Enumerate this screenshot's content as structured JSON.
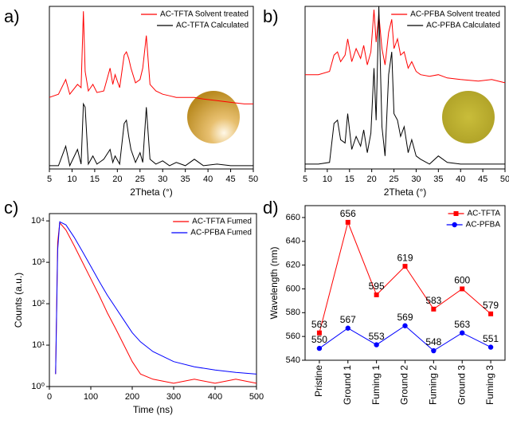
{
  "chart_data": [
    {
      "type": "line",
      "panel_label": "a)",
      "xlabel": "2Theta (°)",
      "legend": "upper right",
      "x": [
        5,
        7,
        8.6,
        9.5,
        11.2,
        12,
        12.5,
        12.9,
        13.6,
        14.6,
        15.5,
        17,
        18.4,
        19,
        19.5,
        20.5,
        21.5,
        22,
        22.5,
        23,
        24,
        25,
        25.6,
        26.4,
        27.2,
        28.5,
        30,
        31.5,
        33,
        35,
        37,
        39,
        42,
        45,
        48,
        50
      ],
      "series": [
        {
          "name": "AC-TFTA Solvent treated",
          "color": "#ff0000",
          "values": [
            44,
            46,
            55,
            46,
            52,
            50,
            97,
            60,
            48,
            52,
            47,
            48,
            62,
            52,
            58,
            50,
            70,
            72,
            68,
            62,
            53,
            55,
            62,
            82,
            52,
            48,
            46,
            45,
            44,
            44,
            44,
            43,
            42,
            41,
            40,
            40
          ]
        },
        {
          "name": "AC-TFTA Calculated",
          "color": "#000000",
          "values": [
            2,
            2,
            14,
            2,
            12,
            3,
            40,
            38,
            3,
            8,
            3,
            6,
            12,
            4,
            8,
            3,
            28,
            30,
            20,
            12,
            4,
            10,
            4,
            38,
            6,
            3,
            5,
            2,
            4,
            2,
            6,
            2,
            3,
            2,
            2,
            2
          ]
        }
      ],
      "xlim": [
        5,
        50
      ],
      "xticks": [
        5,
        10,
        15,
        20,
        25,
        30,
        35,
        40,
        45,
        50
      ],
      "ylim": [
        0,
        100
      ]
    },
    {
      "type": "line",
      "panel_label": "b)",
      "xlabel": "2Theta (°)",
      "legend": "upper right",
      "x": [
        5,
        8,
        10.5,
        11.5,
        12.3,
        13,
        14,
        14.6,
        15.5,
        16.5,
        17.5,
        18.2,
        19,
        19.8,
        20.5,
        21,
        21.6,
        22.3,
        23,
        23.8,
        24.5,
        25,
        25.8,
        26.5,
        27.3,
        28.2,
        29,
        30,
        31,
        33,
        35,
        37,
        40,
        44,
        47,
        50
      ],
      "series": [
        {
          "name": "AC-PFBA Solvent treated",
          "color": "#ff0000",
          "values": [
            58,
            58,
            60,
            70,
            72,
            66,
            70,
            80,
            66,
            74,
            68,
            76,
            64,
            72,
            98,
            78,
            95,
            74,
            64,
            84,
            92,
            74,
            80,
            70,
            72,
            62,
            66,
            60,
            58,
            57,
            58,
            56,
            55,
            54,
            55,
            53
          ]
        },
        {
          "name": "AC-PFBA Calculated",
          "color": "#000000",
          "values": [
            3,
            3,
            4,
            28,
            30,
            18,
            16,
            34,
            12,
            20,
            14,
            24,
            10,
            22,
            62,
            30,
            100,
            26,
            8,
            58,
            72,
            34,
            30,
            20,
            26,
            10,
            18,
            8,
            6,
            3,
            8,
            4,
            3,
            3,
            3,
            3
          ]
        }
      ],
      "xlim": [
        5,
        50
      ],
      "xticks": [
        5,
        10,
        15,
        20,
        25,
        30,
        35,
        40,
        45,
        50
      ],
      "ylim": [
        0,
        100
      ]
    },
    {
      "type": "line",
      "panel_label": "c)",
      "xlabel": "Time (ns)",
      "ylabel": "Counts (a.u.)",
      "legend": "upper right",
      "ylog": true,
      "x": [
        15,
        20,
        25,
        40,
        60,
        80,
        100,
        120,
        140,
        160,
        180,
        200,
        220,
        250,
        300,
        350,
        400,
        450,
        500
      ],
      "series": [
        {
          "name": "AC-TFTA Fumed",
          "color": "#ff0000",
          "values": [
            2,
            3000,
            9000,
            6000,
            2500,
            1000,
            400,
            160,
            60,
            25,
            10,
            4,
            2,
            1.5,
            1.2,
            1.5,
            1.2,
            1.5,
            1.2
          ]
        },
        {
          "name": "AC-PFBA Fumed",
          "color": "#0000ff",
          "values": [
            2,
            2000,
            9500,
            8000,
            4000,
            1800,
            800,
            350,
            160,
            80,
            40,
            20,
            12,
            7,
            4,
            3,
            2.5,
            2.2,
            2
          ]
        }
      ],
      "xlim": [
        0,
        500
      ],
      "xticks": [
        0,
        100,
        200,
        300,
        400,
        500
      ],
      "ylim": [
        1,
        15000
      ],
      "yticks": [
        {
          "value": 1,
          "label": "10⁰"
        },
        {
          "value": 10,
          "label": "10¹"
        },
        {
          "value": 100,
          "label": "10²"
        },
        {
          "value": 1000,
          "label": "10³"
        },
        {
          "value": 10000,
          "label": "10⁴"
        }
      ]
    },
    {
      "type": "line-markers",
      "panel_label": "d)",
      "ylabel": "Wavelength (nm)",
      "legend": "upper right",
      "categories": [
        "Pristine",
        "Ground 1",
        "Fuming 1",
        "Ground 2",
        "Fuming 2",
        "Ground 3",
        "Fuming 3"
      ],
      "series": [
        {
          "name": "AC-TFTA",
          "color": "#ff0000",
          "marker": "square",
          "values": [
            563,
            656,
            595,
            619,
            583,
            600,
            579
          ]
        },
        {
          "name": "AC-PFBA",
          "color": "#0000ff",
          "marker": "circle",
          "values": [
            550,
            567,
            553,
            569,
            548,
            563,
            551
          ]
        }
      ],
      "ylim": [
        540,
        670
      ],
      "yticks": [
        540,
        560,
        580,
        600,
        620,
        640,
        660
      ]
    }
  ]
}
